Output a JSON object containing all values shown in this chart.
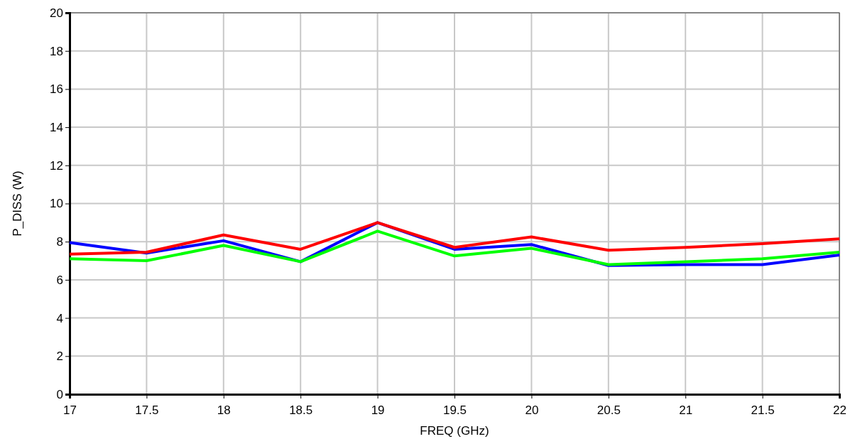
{
  "chart_data": {
    "type": "line",
    "xlabel": "FREQ (GHz)",
    "ylabel": "P_DISS (W)",
    "x": [
      17,
      17.5,
      18,
      18.5,
      19,
      19.5,
      20,
      20.5,
      21,
      21.5,
      22
    ],
    "series": [
      {
        "color": "#0000ff",
        "values": [
          7.95,
          7.4,
          8.05,
          6.95,
          9.0,
          7.6,
          7.85,
          6.75,
          6.8,
          6.8,
          7.3
        ]
      },
      {
        "color": "#00ff00",
        "values": [
          7.1,
          7.0,
          7.8,
          6.95,
          8.55,
          7.25,
          7.65,
          6.8,
          6.95,
          7.1,
          7.45
        ]
      },
      {
        "color": "#ff0000",
        "values": [
          7.35,
          7.45,
          8.35,
          7.6,
          9.0,
          7.7,
          8.25,
          7.55,
          7.7,
          7.9,
          8.15
        ]
      }
    ],
    "xlim": [
      17,
      22
    ],
    "xticks": [
      17,
      17.5,
      18,
      18.5,
      19,
      19.5,
      20,
      20.5,
      21,
      21.5,
      22
    ],
    "ylim": [
      0,
      20
    ],
    "yticks": [
      0,
      2,
      4,
      6,
      8,
      10,
      12,
      14,
      16,
      18,
      20
    ],
    "grid": true
  }
}
